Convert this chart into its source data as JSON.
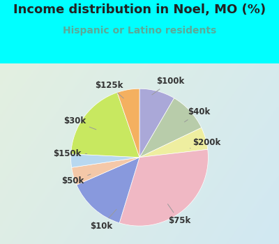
{
  "title": "Income distribution in Noel, MO (%)",
  "subtitle": "Hispanic or Latino residents",
  "fig_bg_color": "#00FFFF",
  "chart_bg_color_tl": "#dff0e8",
  "chart_bg_color_br": "#cce8f4",
  "slices": [
    {
      "label": "$100k",
      "value": 8,
      "color": "#aaa8d8"
    },
    {
      "label": "$40k",
      "value": 9,
      "color": "#b8ccaa"
    },
    {
      "label": "$200k",
      "value": 5,
      "color": "#eeeea0"
    },
    {
      "label": "$75k",
      "value": 30,
      "color": "#f0b8c4"
    },
    {
      "label": "$10k",
      "value": 13,
      "color": "#8899dd"
    },
    {
      "label": "$50k",
      "value": 4,
      "color": "#f4c8a8"
    },
    {
      "label": "$150k",
      "value": 3,
      "color": "#b8d8f0"
    },
    {
      "label": "$30k",
      "value": 18,
      "color": "#c8e860"
    },
    {
      "label": "$125k",
      "value": 5,
      "color": "#f4b060"
    }
  ],
  "title_fontsize": 13,
  "subtitle_fontsize": 10,
  "label_fontsize": 8.5,
  "title_color": "#222222",
  "subtitle_color": "#5aaa99"
}
